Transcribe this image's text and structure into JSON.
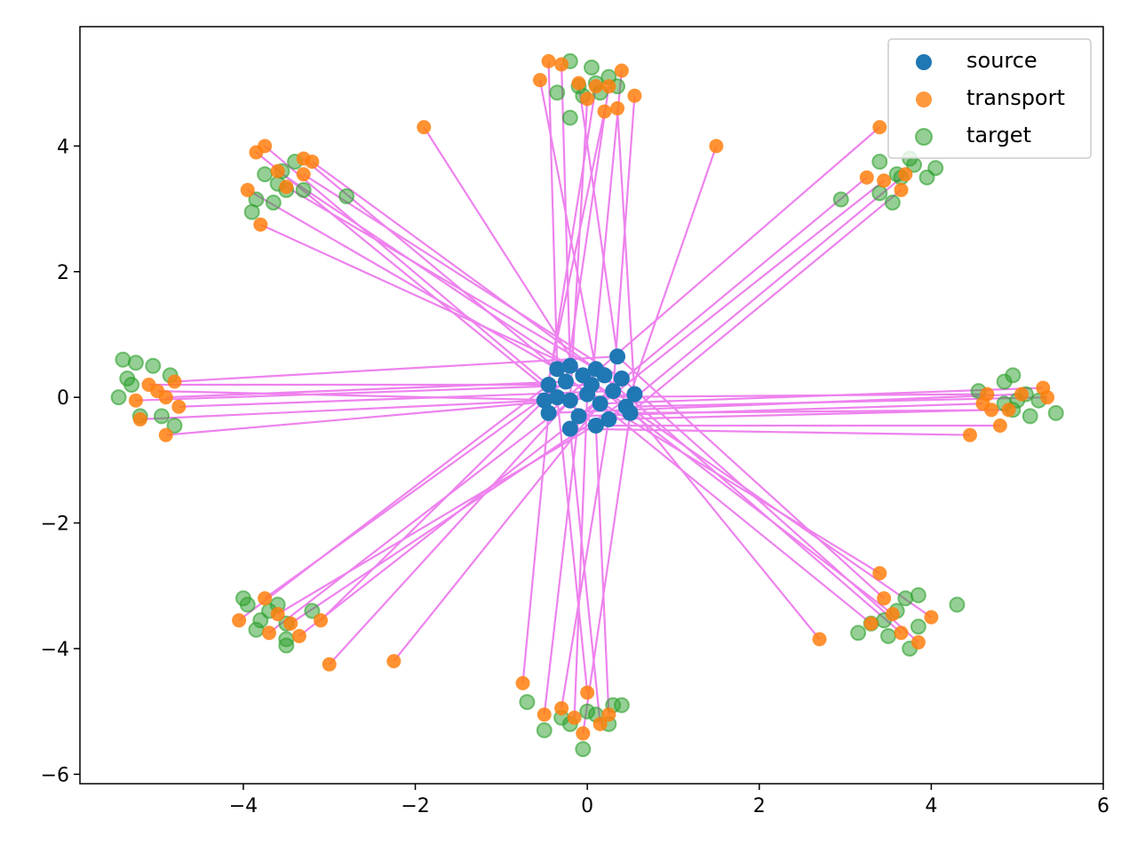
{
  "chart_data": {
    "type": "scatter",
    "title": "",
    "xlabel": "",
    "ylabel": "",
    "xlim": [
      -5.9,
      6.0
    ],
    "ylim": [
      -6.15,
      5.9
    ],
    "xticks": [
      -4,
      -2,
      0,
      2,
      4,
      6
    ],
    "yticks": [
      -6,
      -4,
      -2,
      0,
      2,
      4
    ],
    "xtick_labels": [
      "−4",
      "−2",
      "0",
      "2",
      "4",
      "6"
    ],
    "ytick_labels": [
      "−6",
      "−4",
      "−2",
      "0",
      "2",
      "4"
    ],
    "grid": false,
    "legend_position": "top-right",
    "colors": {
      "source": "#1f77b4",
      "transport": "#ff7f0e",
      "target": "#2ca02c",
      "line": "#ee82ee"
    },
    "series": [
      {
        "name": "source",
        "label": "source",
        "points": [
          [
            -0.35,
            0.45
          ],
          [
            -0.2,
            0.5
          ],
          [
            0.1,
            0.45
          ],
          [
            0.35,
            0.65
          ],
          [
            -0.45,
            0.2
          ],
          [
            -0.25,
            0.25
          ],
          [
            0.05,
            0.2
          ],
          [
            0.3,
            0.1
          ],
          [
            0.55,
            0.05
          ],
          [
            -0.5,
            -0.05
          ],
          [
            -0.2,
            -0.05
          ],
          [
            0.15,
            -0.1
          ],
          [
            0.45,
            -0.15
          ],
          [
            -0.45,
            -0.25
          ],
          [
            -0.1,
            -0.3
          ],
          [
            0.25,
            -0.35
          ],
          [
            0.5,
            -0.25
          ],
          [
            -0.2,
            -0.5
          ],
          [
            0.1,
            -0.45
          ],
          [
            -0.35,
            0.0
          ],
          [
            0.0,
            0.05
          ],
          [
            0.2,
            0.35
          ],
          [
            -0.05,
            0.35
          ],
          [
            0.4,
            0.3
          ]
        ]
      },
      {
        "name": "transport",
        "label": "transport",
        "points": [
          [
            -0.45,
            5.35
          ],
          [
            -0.3,
            5.3
          ],
          [
            -0.55,
            5.05
          ],
          [
            -0.1,
            5.0
          ],
          [
            0.1,
            4.95
          ],
          [
            0.25,
            4.95
          ],
          [
            0.4,
            5.2
          ],
          [
            0.55,
            4.8
          ],
          [
            0.35,
            4.6
          ],
          [
            0.2,
            4.55
          ],
          [
            0.0,
            4.75
          ],
          [
            -1.9,
            4.3
          ],
          [
            1.5,
            4.0
          ],
          [
            3.4,
            4.3
          ],
          [
            3.25,
            3.5
          ],
          [
            3.7,
            3.55
          ],
          [
            3.65,
            3.3
          ],
          [
            3.45,
            3.45
          ],
          [
            -3.75,
            4.0
          ],
          [
            -3.85,
            3.9
          ],
          [
            -3.3,
            3.8
          ],
          [
            -3.2,
            3.75
          ],
          [
            -3.6,
            3.6
          ],
          [
            -3.3,
            3.55
          ],
          [
            -3.95,
            3.3
          ],
          [
            -3.8,
            2.75
          ],
          [
            -3.5,
            3.35
          ],
          [
            -4.8,
            0.25
          ],
          [
            -5.1,
            0.2
          ],
          [
            -4.9,
            0.0
          ],
          [
            -5.25,
            -0.05
          ],
          [
            -4.75,
            -0.15
          ],
          [
            -4.9,
            -0.6
          ],
          [
            -5.2,
            -0.35
          ],
          [
            -5.0,
            0.1
          ],
          [
            5.3,
            0.15
          ],
          [
            5.35,
            0.0
          ],
          [
            5.05,
            0.05
          ],
          [
            4.6,
            -0.1
          ],
          [
            4.7,
            -0.2
          ],
          [
            4.9,
            -0.2
          ],
          [
            4.45,
            -0.6
          ],
          [
            4.8,
            -0.45
          ],
          [
            4.65,
            0.05
          ],
          [
            3.4,
            -2.8
          ],
          [
            2.7,
            -3.85
          ],
          [
            4.0,
            -3.5
          ],
          [
            3.85,
            -3.9
          ],
          [
            3.3,
            -3.6
          ],
          [
            3.55,
            -3.45
          ],
          [
            3.65,
            -3.75
          ],
          [
            3.45,
            -3.2
          ],
          [
            -4.05,
            -3.55
          ],
          [
            -3.75,
            -3.2
          ],
          [
            -3.7,
            -3.75
          ],
          [
            -3.35,
            -3.8
          ],
          [
            -3.45,
            -3.6
          ],
          [
            -3.1,
            -3.55
          ],
          [
            -3.0,
            -4.25
          ],
          [
            -2.25,
            -4.2
          ],
          [
            -3.6,
            -3.45
          ],
          [
            -0.75,
            -4.55
          ],
          [
            -0.5,
            -5.05
          ],
          [
            -0.3,
            -4.95
          ],
          [
            -0.05,
            -5.35
          ],
          [
            0.15,
            -5.2
          ],
          [
            0.25,
            -5.05
          ],
          [
            0.0,
            -4.7
          ],
          [
            -0.15,
            -5.1
          ]
        ]
      },
      {
        "name": "target",
        "label": "target",
        "points": [
          [
            -0.2,
            5.35
          ],
          [
            0.05,
            5.25
          ],
          [
            0.25,
            5.1
          ],
          [
            0.35,
            4.95
          ],
          [
            -0.35,
            4.85
          ],
          [
            -0.1,
            4.95
          ],
          [
            0.15,
            4.85
          ],
          [
            -0.2,
            4.45
          ],
          [
            0.1,
            5.0
          ],
          [
            -0.05,
            4.8
          ],
          [
            3.75,
            3.8
          ],
          [
            4.05,
            3.65
          ],
          [
            3.8,
            3.7
          ],
          [
            3.4,
            3.75
          ],
          [
            3.95,
            3.5
          ],
          [
            3.65,
            3.5
          ],
          [
            3.4,
            3.25
          ],
          [
            3.55,
            3.1
          ],
          [
            2.95,
            3.15
          ],
          [
            3.6,
            3.55
          ],
          [
            -3.4,
            3.75
          ],
          [
            -3.55,
            3.6
          ],
          [
            -3.75,
            3.55
          ],
          [
            -3.6,
            3.4
          ],
          [
            -3.5,
            3.3
          ],
          [
            -3.85,
            3.15
          ],
          [
            -3.65,
            3.1
          ],
          [
            -3.9,
            2.95
          ],
          [
            -2.8,
            3.2
          ],
          [
            -3.3,
            3.3
          ],
          [
            -5.4,
            0.6
          ],
          [
            -5.25,
            0.55
          ],
          [
            -5.05,
            0.5
          ],
          [
            -5.35,
            0.3
          ],
          [
            -5.3,
            0.2
          ],
          [
            -5.45,
            0.0
          ],
          [
            -5.2,
            -0.3
          ],
          [
            -4.95,
            -0.3
          ],
          [
            -4.8,
            -0.45
          ],
          [
            -4.85,
            0.35
          ],
          [
            4.95,
            0.35
          ],
          [
            4.85,
            0.25
          ],
          [
            5.1,
            0.05
          ],
          [
            5.25,
            -0.05
          ],
          [
            5.45,
            -0.25
          ],
          [
            5.15,
            -0.3
          ],
          [
            4.95,
            -0.2
          ],
          [
            4.55,
            0.1
          ],
          [
            4.85,
            -0.1
          ],
          [
            5.0,
            -0.05
          ],
          [
            3.85,
            -3.15
          ],
          [
            4.3,
            -3.3
          ],
          [
            3.7,
            -3.2
          ],
          [
            3.6,
            -3.4
          ],
          [
            3.45,
            -3.55
          ],
          [
            3.85,
            -3.65
          ],
          [
            3.75,
            -4.0
          ],
          [
            3.5,
            -3.8
          ],
          [
            3.15,
            -3.75
          ],
          [
            3.3,
            -3.6
          ],
          [
            -4.0,
            -3.2
          ],
          [
            -3.95,
            -3.3
          ],
          [
            -3.8,
            -3.55
          ],
          [
            -3.7,
            -3.4
          ],
          [
            -3.5,
            -3.6
          ],
          [
            -3.5,
            -3.85
          ],
          [
            -3.5,
            -3.95
          ],
          [
            -3.6,
            -3.3
          ],
          [
            -3.2,
            -3.4
          ],
          [
            -3.85,
            -3.7
          ],
          [
            0.3,
            -4.9
          ],
          [
            0.4,
            -4.9
          ],
          [
            -0.7,
            -4.85
          ],
          [
            -0.5,
            -5.3
          ],
          [
            -0.2,
            -5.2
          ],
          [
            0.0,
            -5.0
          ],
          [
            0.25,
            -5.2
          ],
          [
            -0.05,
            -5.6
          ],
          [
            0.1,
            -5.05
          ],
          [
            -0.3,
            -5.1
          ]
        ]
      }
    ],
    "transport_lines_from": "source",
    "transport_lines_to": "transport"
  }
}
